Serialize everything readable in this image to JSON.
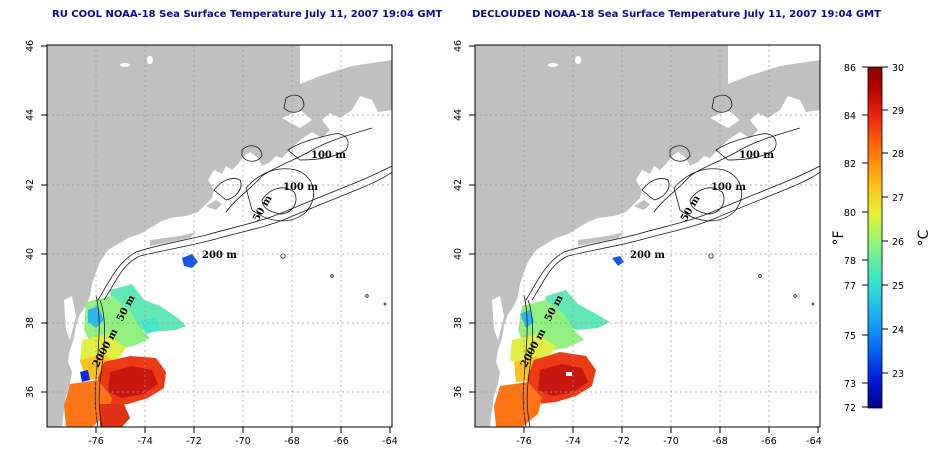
{
  "panels": [
    {
      "title": "RU COOL NOAA-18 Sea Surface Temperature July 11, 2007 19:04 GMT",
      "variant": "raw"
    },
    {
      "title": "DECLOUDED NOAA-18 Sea Surface Temperature July 11, 2007 19:04 GMT",
      "variant": "declouded"
    }
  ],
  "map": {
    "lon_range": [
      -77.5,
      -63
    ],
    "lat_range": [
      35,
      46
    ],
    "lon_ticks": [
      "-76",
      "-74",
      "-72",
      "-70",
      "-68",
      "-66",
      "-64"
    ],
    "lat_ticks": [
      "36",
      "38",
      "40",
      "42",
      "44",
      "46"
    ],
    "grid": true,
    "land_color": "#c0c0c0",
    "contour_labels": [
      "100 m",
      "100 m",
      "50 m",
      "200 m",
      "50 m",
      "2000 m"
    ]
  },
  "colorbar": {
    "fahrenheit_ticks": [
      "72",
      "73",
      "75",
      "77",
      "78",
      "80",
      "82",
      "84",
      "86"
    ],
    "celsius_ticks": [
      "23",
      "24",
      "25",
      "26",
      "27",
      "28",
      "29",
      "30"
    ],
    "fahrenheit_unit": "°F",
    "celsius_unit": "°C",
    "colors": [
      "#00008c",
      "#0020e0",
      "#0a6ef5",
      "#1eb4f0",
      "#3ce6c8",
      "#8cf57a",
      "#e6f032",
      "#ffbe14",
      "#ff6e0a",
      "#eb230a",
      "#b40000",
      "#8c0000"
    ]
  }
}
